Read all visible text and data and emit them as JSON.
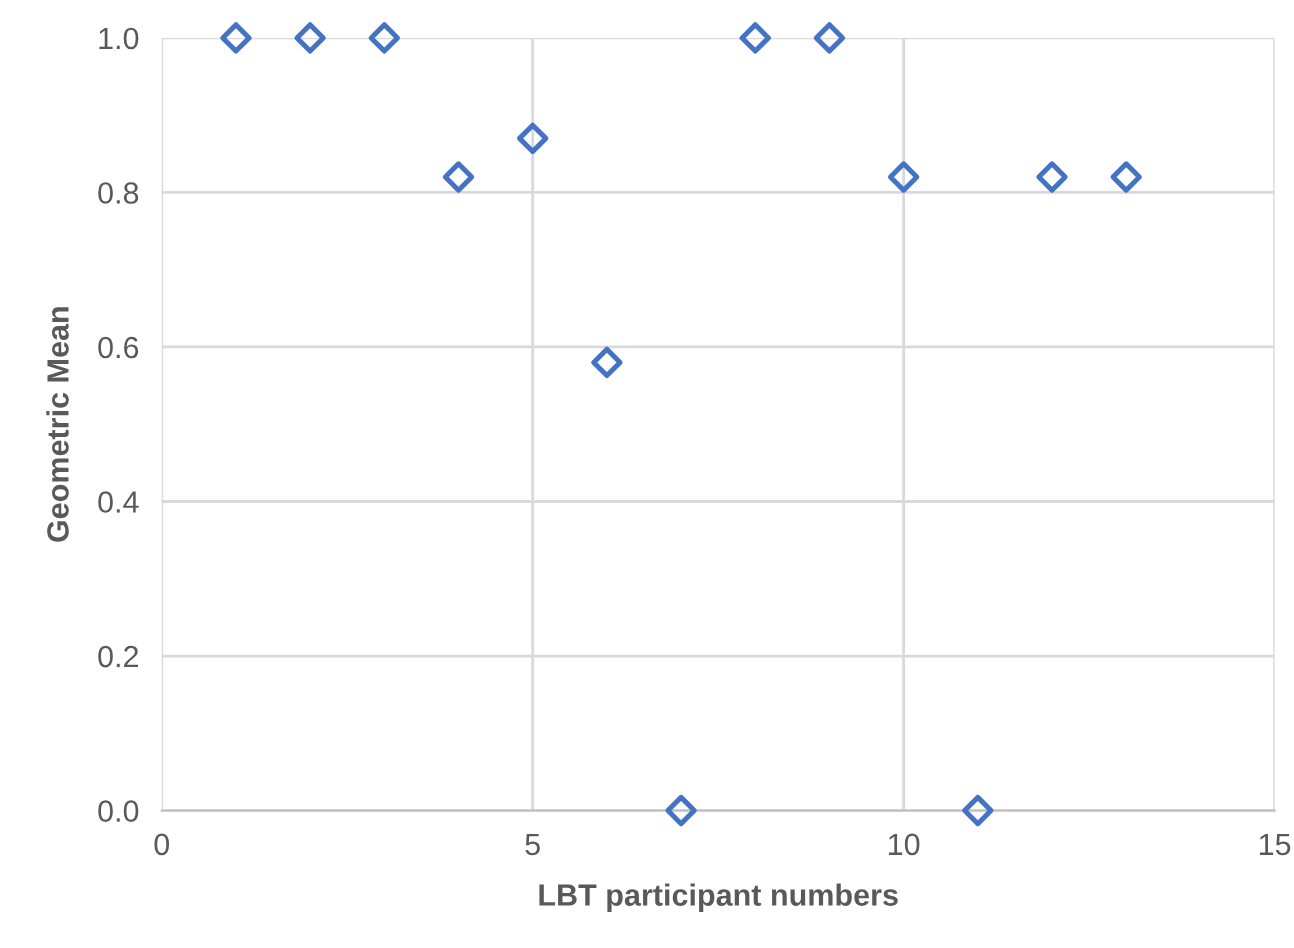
{
  "chart_data": {
    "type": "scatter",
    "xlabel": "LBT participant numbers",
    "ylabel": "Geometric Mean",
    "x": [
      1,
      2,
      3,
      4,
      5,
      6,
      7,
      8,
      9,
      10,
      11,
      12,
      13
    ],
    "series": [
      {
        "color": "#4472c4",
        "values": [
          1.0,
          1.0,
          1.0,
          0.82,
          0.87,
          0.58,
          0.0,
          1.0,
          1.0,
          0.82,
          0.0,
          0.82,
          0.82
        ]
      }
    ],
    "xlim": [
      0,
      15
    ],
    "xticks": [
      0,
      5,
      10,
      15
    ],
    "ylim": [
      0,
      1.0
    ],
    "yticks": [
      {
        "value": 0,
        "label": "0.0"
      },
      {
        "value": 0.2,
        "label": "0.2"
      },
      {
        "value": 0.4,
        "label": "0.4"
      },
      {
        "value": 0.6,
        "label": "0.6"
      },
      {
        "value": 0.8,
        "label": "0.8"
      },
      {
        "value": 1.0,
        "label": "1.0"
      }
    ],
    "grid": true,
    "marker": "diamond"
  }
}
